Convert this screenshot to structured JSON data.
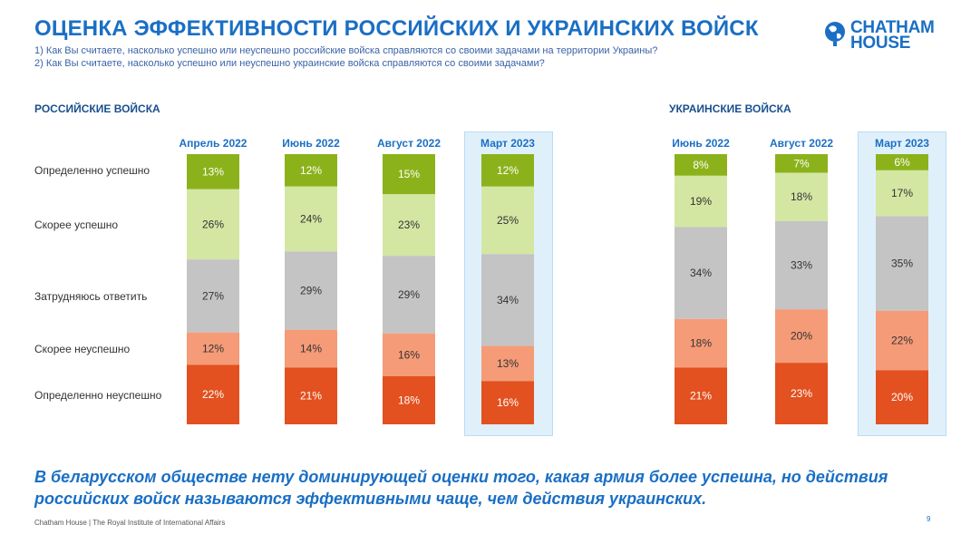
{
  "header": {
    "title": "ОЦЕНКА ЭФФЕКТИВНОСТИ РОССИЙСКИХ И УКРАИНСКИХ ВОЙСК",
    "question1": "1) Как Вы считаете, насколько успешно или неуспешно российские войска справляются со своими задачами на территории Украины?",
    "question2": "2) Как Вы считаете, насколько успешно или неуспешно украинские войска справляются со своими задачами?"
  },
  "logo": {
    "line1": "CHATHAM",
    "line2": "HOUSE"
  },
  "conclusion": "В беларусском обществе нету доминирующей оценки того, какая армия более успешна, но действия российских войск называются эффективными чаще, чем действия украинских.",
  "footer": {
    "text": "Chatham House  |  The Royal Institute of International Affairs",
    "page": "9"
  },
  "colors": {
    "accent": "#1a6fc4",
    "highlight": "#e0f0fb"
  },
  "chart_data": {
    "type": "bar",
    "stacked": true,
    "orientation": "vertical-stacked",
    "row_labels": [
      "Определенно успешно",
      "Скорее успешно",
      "Затрудняюсь ответить",
      "Скорее неуспешно",
      "Определенно неуспешно"
    ],
    "segment_colors": [
      "#8cb21b",
      "#d3e7a3",
      "#c4c4c4",
      "#f59b78",
      "#e2511f"
    ],
    "groups": [
      {
        "name": "РОССИЙСКИЕ ВОЙСКА",
        "periods": [
          "Апрель 2022",
          "Июнь 2022",
          "Август 2022",
          "Март 2023"
        ],
        "highlighted": "Март 2023",
        "series": [
          {
            "name": "Определенно успешно",
            "values": [
              13,
              12,
              15,
              12
            ]
          },
          {
            "name": "Скорее успешно",
            "values": [
              26,
              24,
              23,
              25
            ]
          },
          {
            "name": "Затрудняюсь ответить",
            "values": [
              27,
              29,
              29,
              34
            ]
          },
          {
            "name": "Скорее неуспешно",
            "values": [
              12,
              14,
              16,
              13
            ]
          },
          {
            "name": "Определенно неуспешно",
            "values": [
              22,
              21,
              18,
              16
            ]
          }
        ]
      },
      {
        "name": "УКРАИНСКИЕ ВОЙСКА",
        "periods": [
          "Июнь 2022",
          "Август 2022",
          "Март 2023"
        ],
        "highlighted": "Март 2023",
        "series": [
          {
            "name": "Определенно успешно",
            "values": [
              8,
              7,
              6
            ]
          },
          {
            "name": "Скорее успешно",
            "values": [
              19,
              18,
              17
            ]
          },
          {
            "name": "Затрудняюсь ответить",
            "values": [
              34,
              33,
              35
            ]
          },
          {
            "name": "Скорее неуспешно",
            "values": [
              18,
              20,
              22
            ]
          },
          {
            "name": "Определенно неуспешно",
            "values": [
              21,
              23,
              20
            ]
          }
        ]
      }
    ]
  }
}
